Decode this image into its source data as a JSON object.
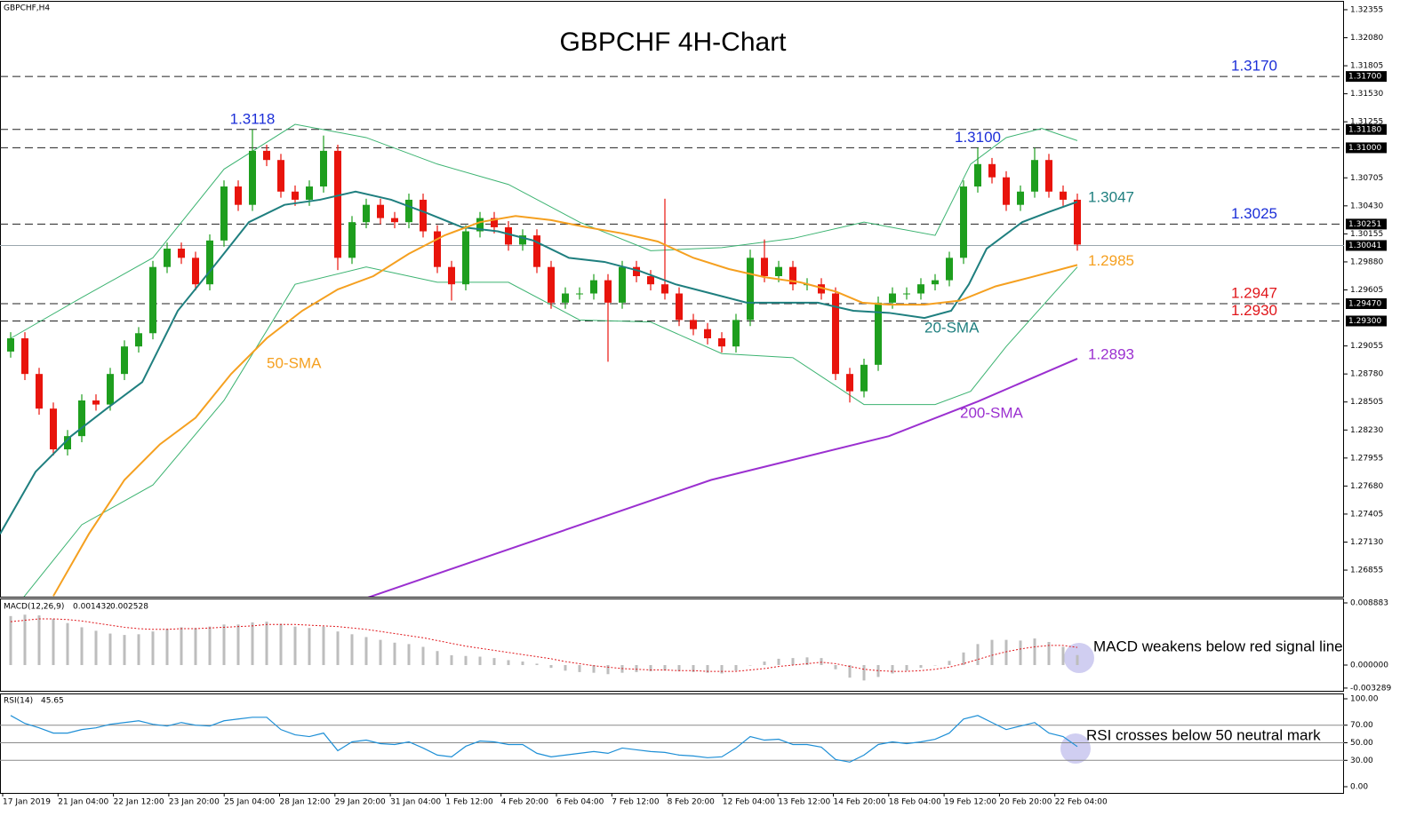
{
  "chart_data": [
    {
      "type": "candlestick",
      "title": "GBPCHF 4H-Chart",
      "symbol": "GBPCHF,H4",
      "xlim": [
        -0.75,
        93.75
      ],
      "ylim": [
        1.26594,
        1.32433
      ],
      "yticks": [
        1.26855,
        {
          "value": 1.2713,
          "label": "1.27130"
        },
        1.27405,
        {
          "value": 1.2768,
          "label": "1.27680"
        },
        1.27955,
        {
          "value": 1.2823,
          "label": "1.28230"
        },
        1.28505,
        {
          "value": 1.2878,
          "label": "1.28780"
        },
        1.29055,
        1.29605,
        {
          "value": 1.2988,
          "label": "1.29880"
        },
        1.30155,
        {
          "value": 1.3043,
          "label": "1.30430"
        },
        1.30705,
        1.31255,
        {
          "value": 1.3153,
          "label": "1.31530"
        },
        1.31805,
        {
          "value": 1.3208,
          "label": "1.32080"
        },
        1.32355
      ],
      "candles": {
        "up_color": "#1e9e1e",
        "down_color": "#e8140c",
        "open": [
          1.29,
          1.2913,
          1.2878,
          1.2844,
          1.2804,
          1.2817,
          1.2852,
          1.2848,
          1.2878,
          1.2905,
          1.2918,
          1.2983,
          1.3001,
          1.2992,
          1.2966,
          1.3009,
          1.3062,
          1.3044,
          1.3097,
          1.3088,
          1.3057,
          1.3049,
          1.3062,
          1.3097,
          1.2992,
          1.3027,
          1.3044,
          1.3031,
          1.3027,
          1.3049,
          1.3018,
          1.2983,
          1.2966,
          1.3018,
          1.3031,
          1.3022,
          1.3005,
          1.3014,
          1.2983,
          1.2948,
          1.2957,
          1.2957,
          1.297,
          1.2948,
          1.2983,
          1.2974,
          1.2966,
          1.2957,
          1.2931,
          1.2922,
          1.2913,
          1.2905,
          1.2931,
          1.2992,
          1.2974,
          1.2983,
          1.2966,
          1.2966,
          1.2957,
          1.2878,
          1.2861,
          1.2887,
          1.2948,
          1.2957,
          1.2957,
          1.2966,
          1.297,
          1.2992,
          1.3062,
          1.3084,
          1.3071,
          1.3044,
          1.3057,
          1.3088,
          1.3057,
          1.3049
        ],
        "high": [
          1.2919,
          1.2919,
          1.2884,
          1.285,
          1.2823,
          1.2858,
          1.2858,
          1.2884,
          1.2911,
          1.2924,
          1.2989,
          1.3007,
          1.3007,
          1.2998,
          1.3015,
          1.3068,
          1.3068,
          1.3118,
          1.3103,
          1.3094,
          1.3063,
          1.3068,
          1.3112,
          1.3103,
          1.3033,
          1.305,
          1.305,
          1.3037,
          1.3055,
          1.3055,
          1.3024,
          1.2989,
          1.3024,
          1.3037,
          1.3037,
          1.3028,
          1.302,
          1.302,
          1.2989,
          1.2963,
          1.2963,
          1.2976,
          1.2976,
          1.2989,
          1.2989,
          1.298,
          1.305,
          1.2963,
          1.2937,
          1.2928,
          1.2919,
          1.2937,
          1.3,
          1.301,
          1.2989,
          1.2989,
          1.2972,
          1.2972,
          1.2963,
          1.2884,
          1.2893,
          1.2954,
          1.2963,
          1.2963,
          1.2972,
          1.2976,
          1.2998,
          1.3068,
          1.31,
          1.309,
          1.3077,
          1.3063,
          1.31,
          1.3094,
          1.3063,
          1.3055
        ],
        "low": [
          1.2894,
          1.2872,
          1.2838,
          1.2798,
          1.2798,
          1.2811,
          1.2842,
          1.2842,
          1.2872,
          1.2899,
          1.2912,
          1.2977,
          1.2986,
          1.296,
          1.296,
          1.3003,
          1.3038,
          1.3038,
          1.3082,
          1.3051,
          1.3043,
          1.3043,
          1.3056,
          1.298,
          1.2986,
          1.3021,
          1.3025,
          1.3021,
          1.3021,
          1.3012,
          1.2977,
          1.295,
          1.296,
          1.3012,
          1.3016,
          1.2999,
          1.2999,
          1.2977,
          1.2942,
          1.2942,
          1.2951,
          1.2951,
          1.289,
          1.2942,
          1.2968,
          1.296,
          1.2951,
          1.2925,
          1.2916,
          1.2907,
          1.2899,
          1.2899,
          1.2925,
          1.2968,
          1.2968,
          1.296,
          1.296,
          1.2951,
          1.2872,
          1.285,
          1.2855,
          1.2881,
          1.2942,
          1.2951,
          1.2951,
          1.296,
          1.2964,
          1.2986,
          1.3056,
          1.3065,
          1.3038,
          1.3038,
          1.3051,
          1.3051,
          1.3043,
          1.2999
        ],
        "close": [
          1.2913,
          1.2878,
          1.2844,
          1.2804,
          1.2817,
          1.2852,
          1.2848,
          1.2878,
          1.2905,
          1.2918,
          1.2983,
          1.3001,
          1.2992,
          1.2966,
          1.3009,
          1.3062,
          1.3044,
          1.3097,
          1.3088,
          1.3057,
          1.3049,
          1.3062,
          1.3097,
          1.2992,
          1.3027,
          1.3044,
          1.3031,
          1.3027,
          1.3049,
          1.3018,
          1.2983,
          1.2966,
          1.3018,
          1.3031,
          1.3022,
          1.3005,
          1.3014,
          1.2983,
          1.2948,
          1.2957,
          1.2957,
          1.297,
          1.2948,
          1.2983,
          1.2974,
          1.2966,
          1.2957,
          1.2931,
          1.2922,
          1.2913,
          1.2905,
          1.2931,
          1.2992,
          1.2974,
          1.2983,
          1.2966,
          1.2966,
          1.2957,
          1.2878,
          1.2861,
          1.2887,
          1.2948,
          1.2957,
          1.2957,
          1.2966,
          1.297,
          1.2992,
          1.3062,
          1.3084,
          1.3071,
          1.3044,
          1.3057,
          1.3088,
          1.3057,
          1.3049,
          1.3005
        ]
      },
      "bands": {
        "color": "#3cb371",
        "x": [
          0,
          5,
          10,
          15,
          20,
          25,
          30,
          35,
          40,
          45,
          50,
          55,
          60,
          65,
          67.5,
          70,
          72.5,
          75
        ],
        "upper": [
          1.2913,
          1.2953,
          1.2992,
          1.3079,
          1.3123,
          1.311,
          1.3084,
          1.3064,
          1.3027,
          1.2999,
          1.3002,
          1.3011,
          1.3027,
          1.3014,
          1.3084,
          1.311,
          1.3119,
          1.3107
        ],
        "lower": [
          1.2643,
          1.273,
          1.2769,
          1.2852,
          1.2966,
          1.2983,
          1.2968,
          1.2968,
          1.2931,
          1.2929,
          1.2898,
          1.2894,
          1.2848,
          1.2848,
          1.2861,
          1.2905,
          1.2944,
          1.2983
        ]
      },
      "series": [
        {
          "name": "20-SMA",
          "color": "#1f7f7f",
          "x": [
            -0.75,
            1.75,
            4.25,
            6.75,
            9.25,
            11.75,
            14.25,
            16.75,
            19.25,
            21.75,
            24.25,
            26.75,
            29.25,
            31.75,
            34.25,
            36.75,
            39.25,
            41.75,
            44.25,
            46.75,
            49.25,
            51.75,
            54.25,
            56.75,
            59.25,
            61.75,
            64.25,
            66.125,
            67.375,
            68.625,
            71.125,
            73,
            75
          ],
          "values": [
            1.2721,
            1.2782,
            1.2817,
            1.2844,
            1.287,
            1.294,
            1.2983,
            1.3027,
            1.3044,
            1.3049,
            1.3057,
            1.3049,
            1.3036,
            1.3022,
            1.3018,
            1.3009,
            1.2992,
            1.2988,
            1.2979,
            1.2966,
            1.2957,
            1.2948,
            1.2948,
            1.2948,
            1.294,
            1.2938,
            1.2933,
            1.294,
            1.2966,
            1.3001,
            1.3027,
            1.3037,
            1.3047
          ]
        },
        {
          "name": "50-SMA",
          "color": "#f5a020",
          "x": [
            3,
            5.5,
            8,
            10.5,
            13,
            15.5,
            18,
            20.5,
            23,
            25.5,
            28,
            30.5,
            33,
            35.5,
            38,
            40.5,
            43,
            45.5,
            48,
            50.5,
            53,
            55.5,
            58,
            59.875,
            61.75,
            64.25,
            66.75,
            69.25,
            71.75,
            75
          ],
          "values": [
            1.266,
            1.2721,
            1.2774,
            1.2809,
            1.2835,
            1.2878,
            1.2913,
            1.294,
            1.2961,
            1.2974,
            1.2996,
            1.3014,
            1.3027,
            1.3033,
            1.3029,
            1.3022,
            1.3016,
            1.3008,
            1.2992,
            1.2981,
            1.2973,
            1.2968,
            1.2959,
            1.2948,
            1.2946,
            1.2946,
            1.295,
            1.2964,
            1.2973,
            1.2985
          ]
        },
        {
          "name": "200-SMA",
          "color": "#9b30d0",
          "x": [
            25,
            49.25,
            61.75,
            68,
            75
          ],
          "values": [
            1.2658,
            1.2774,
            1.2817,
            1.2851,
            1.2893
          ]
        }
      ],
      "levels": [
        {
          "value": 1.317,
          "axis_label": "1.31700",
          "label": "1.3170",
          "color": "#1c2fd8"
        },
        {
          "value": 1.3118,
          "axis_label": "1.31180",
          "label": "1.3118",
          "color": "#1c2fd8"
        },
        {
          "value": 1.31,
          "axis_label": "1.31000",
          "label": "1.3100",
          "color": "#1c2fd8"
        },
        {
          "value": 1.30251,
          "axis_label": "1.30251",
          "label": "1.3025",
          "color": "#1c2fd8"
        },
        {
          "value": 1.30041,
          "axis_label": "1.30041",
          "style": "solid"
        },
        {
          "value": 1.2947,
          "axis_label": "1.29470",
          "label": "1.2947",
          "color": "#e0161b"
        },
        {
          "value": 1.293,
          "axis_label": "1.29300",
          "label": "1.2930",
          "color": "#e0161b"
        }
      ]
    },
    {
      "type": "macd",
      "label": "MACD(12,26,9)",
      "ylim": [
        -0.00368,
        0.00939
      ],
      "yticks": [
        -0.003289,
        {
          "value": 0,
          "label": "0.000000"
        },
        0.008883
      ],
      "histogram": {
        "color": "#bdbdbd",
        "values": [
          0.007,
          0.0072,
          0.0071,
          0.0066,
          0.006,
          0.0054,
          0.0049,
          0.0045,
          0.0043,
          0.0044,
          0.0048,
          0.0052,
          0.0054,
          0.0053,
          0.0055,
          0.0058,
          0.0058,
          0.0061,
          0.0062,
          0.0059,
          0.0055,
          0.0053,
          0.0055,
          0.0048,
          0.0044,
          0.004,
          0.0036,
          0.0032,
          0.003,
          0.0026,
          0.002,
          0.0014,
          0.0013,
          0.0012,
          0.001,
          0.0007,
          0.0005,
          0.0002,
          -0.0004,
          -0.0008,
          -0.001,
          -0.0011,
          -0.0013,
          -0.0011,
          -0.001,
          -0.0009,
          -0.0008,
          -0.0009,
          -0.001,
          -0.0011,
          -0.0012,
          -0.0008,
          0,
          0.0005,
          0.0009,
          0.001,
          0.0011,
          0.001,
          -0.0006,
          -0.0018,
          -0.0022,
          -0.0017,
          -0.0012,
          -0.0008,
          -0.0004,
          0,
          0.0006,
          0.0018,
          0.003,
          0.0036,
          0.0036,
          0.0035,
          0.0038,
          0.0033,
          0.0026,
          0.001432
        ]
      },
      "signal": {
        "color": "#e0161b",
        "values": [
          0.0062,
          0.0064,
          0.0066,
          0.0066,
          0.0065,
          0.0063,
          0.006,
          0.0057,
          0.0054,
          0.0052,
          0.0051,
          0.0051,
          0.0052,
          0.0052,
          0.0053,
          0.0054,
          0.0055,
          0.0056,
          0.0058,
          0.0058,
          0.0058,
          0.0057,
          0.0056,
          0.0055,
          0.0053,
          0.0051,
          0.0048,
          0.0045,
          0.0042,
          0.0039,
          0.0035,
          0.0031,
          0.0027,
          0.0024,
          0.0021,
          0.0018,
          0.0015,
          0.0012,
          0.0009,
          0.0005,
          0.0002,
          -0.0001,
          -0.0003,
          -0.0005,
          -0.0006,
          -0.0007,
          -0.0007,
          -0.0008,
          -0.0008,
          -0.0009,
          -0.0009,
          -0.0009,
          -0.0007,
          -0.0005,
          -0.0002,
          0,
          0.0002,
          0.0004,
          0.0002,
          -0.0002,
          -0.0006,
          -0.0008,
          -0.0009,
          -0.0009,
          -0.0008,
          -0.0006,
          -0.0003,
          0.0002,
          0.0008,
          0.0014,
          0.0019,
          0.0023,
          0.0026,
          0.0028,
          0.0028,
          0.002528
        ]
      },
      "annotation": "MACD weakens below red signal line"
    },
    {
      "type": "line",
      "label": "RSI(14)",
      "ylim": [
        -7.07,
        105.05
      ],
      "yticks": [
        {
          "value": 0,
          "label": "0.00"
        },
        {
          "value": 30,
          "label": "30.00"
        },
        {
          "value": 50,
          "label": "50.00"
        },
        {
          "value": 70,
          "label": "70.00"
        },
        {
          "value": 100,
          "label": "100.00"
        }
      ],
      "levels": [
        30,
        50,
        70
      ],
      "series": [
        {
          "color": "#1e8fd6",
          "values": [
            81,
            72,
            67,
            61,
            61,
            65,
            67,
            71,
            73,
            75,
            71,
            69,
            73,
            70,
            69,
            75,
            77,
            79,
            79,
            65,
            59,
            57,
            61,
            41,
            51,
            53,
            49,
            48,
            51,
            44,
            36,
            34,
            46,
            52,
            51,
            48,
            48,
            38,
            34,
            36,
            38,
            40,
            38,
            44,
            42,
            40,
            39,
            36,
            35,
            33,
            34,
            44,
            57,
            53,
            54,
            48,
            48,
            45,
            31,
            28,
            36,
            48,
            51,
            49,
            51,
            54,
            61,
            77,
            81,
            73,
            65,
            69,
            73,
            61,
            57,
            45.65
          ]
        }
      ],
      "x_labels": [
        "17 Jan 2019",
        "21 Jan 04:00",
        "22 Jan 12:00",
        "23 Jan 20:00",
        "25 Jan 04:00",
        "28 Jan 12:00",
        "29 Jan 20:00",
        "31 Jan 04:00",
        "1 Feb 12:00",
        "4 Feb 20:00",
        "6 Feb 04:00",
        "7 Feb 12:00",
        "8 Feb 20:00",
        "12 Feb 04:00",
        "13 Feb 12:00",
        "14 Feb 20:00",
        "18 Feb 04:00",
        "19 Feb 12:00",
        "20 Feb 20:00",
        "22 Feb 04:00"
      ],
      "annotation": "RSI crosses below 50 neutral mark"
    }
  ]
}
